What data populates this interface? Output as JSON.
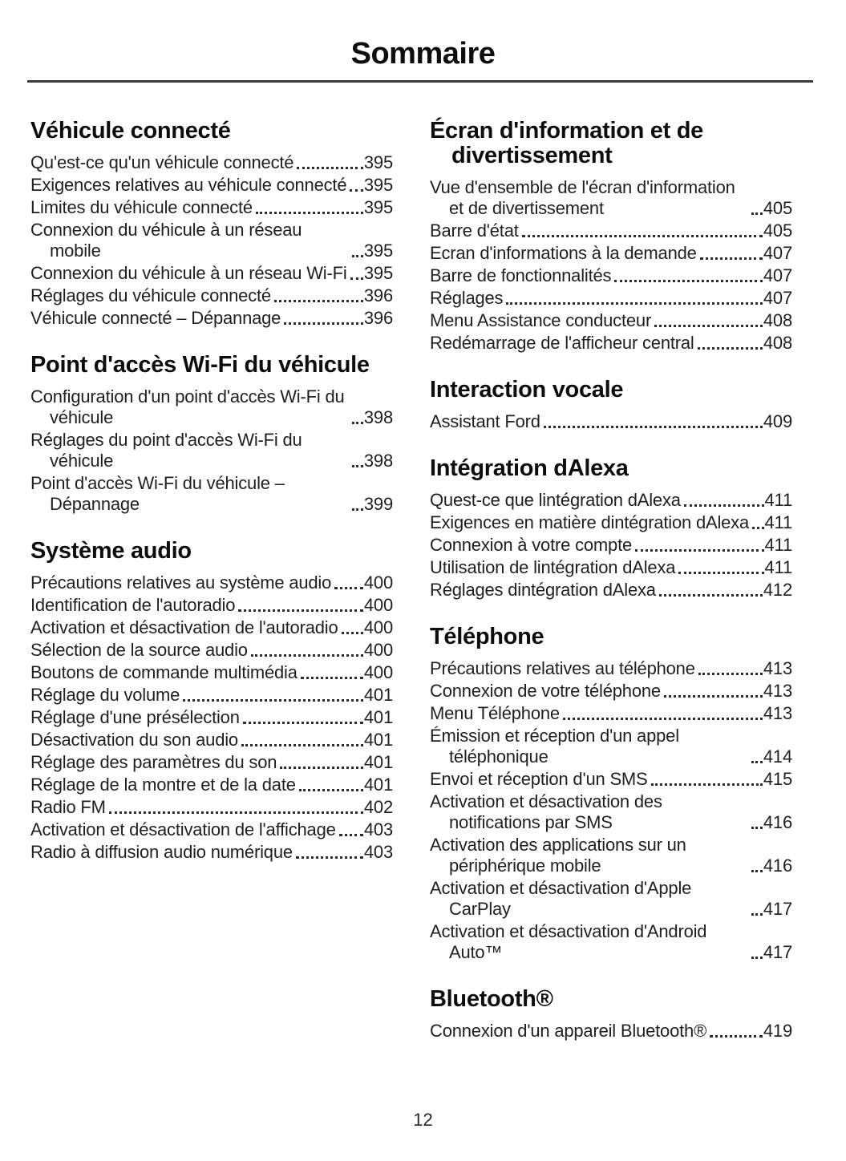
{
  "colors": {
    "background": "#ffffff",
    "text": "#1f1f1f",
    "heading": "#0d0d0d",
    "rule": "#3d3d3d"
  },
  "header": {
    "title": "Sommaire"
  },
  "footer": {
    "page_number": "12"
  },
  "columns": [
    {
      "sections": [
        {
          "heading": "Véhicule connecté",
          "entries": [
            {
              "label": "Qu'est-ce qu'un véhicule connecté",
              "page": "395"
            },
            {
              "label": "Exigences relatives au véhicule connecté",
              "page": "395"
            },
            {
              "label": "Limites du véhicule connecté",
              "page": "395"
            },
            {
              "label": "Connexion du véhicule à un réseau mobile",
              "page": "395"
            },
            {
              "label": "Connexion du véhicule à un réseau Wi-Fi",
              "page": "395"
            },
            {
              "label": "Réglages du véhicule connecté",
              "page": "396"
            },
            {
              "label": "Véhicule connecté – Dépannage",
              "page": "396"
            }
          ]
        },
        {
          "heading": "Point d'accès Wi-Fi du véhicule",
          "entries": [
            {
              "label": "Configuration d'un point d'accès Wi-Fi du véhicule",
              "page": "398"
            },
            {
              "label": "Réglages du point d'accès Wi-Fi du véhicule",
              "page": "398"
            },
            {
              "label": "Point d'accès Wi-Fi du véhicule – Dépannage",
              "page": "399"
            }
          ]
        },
        {
          "heading": "Système audio",
          "entries": [
            {
              "label": "Précautions relatives au système audio",
              "page": "400"
            },
            {
              "label": "Identification de l'autoradio",
              "page": "400"
            },
            {
              "label": "Activation et désactivation de l'autoradio",
              "page": "400"
            },
            {
              "label": "Sélection de la source audio",
              "page": "400"
            },
            {
              "label": "Boutons de commande multimédia",
              "page": "400"
            },
            {
              "label": "Réglage du volume",
              "page": "401"
            },
            {
              "label": "Réglage d'une présélection",
              "page": "401"
            },
            {
              "label": "Désactivation du son audio",
              "page": "401"
            },
            {
              "label": "Réglage des paramètres du son",
              "page": "401"
            },
            {
              "label": "Réglage de la montre et de la date",
              "page": "401"
            },
            {
              "label": "Radio FM",
              "page": "402"
            },
            {
              "label": "Activation et désactivation de l'affichage",
              "page": "403"
            },
            {
              "label": "Radio à diffusion audio numérique",
              "page": "403"
            }
          ]
        }
      ]
    },
    {
      "sections": [
        {
          "heading": "Écran d'information et de divertissement",
          "entries": [
            {
              "label": "Vue d'ensemble de l'écran d'information et de divertissement",
              "page": "405"
            },
            {
              "label": "Barre d'état",
              "page": "405"
            },
            {
              "label": "Ecran d'informations à la demande",
              "page": "407"
            },
            {
              "label": "Barre de fonctionnalités",
              "page": "407"
            },
            {
              "label": "Réglages",
              "page": "407"
            },
            {
              "label": "Menu Assistance conducteur",
              "page": "408"
            },
            {
              "label": "Redémarrage de l'afficheur central",
              "page": "408"
            }
          ]
        },
        {
          "heading": "Interaction vocale",
          "entries": [
            {
              "label": "Assistant Ford",
              "page": "409"
            }
          ]
        },
        {
          "heading": "Intégration dAlexa",
          "entries": [
            {
              "label": "Quest-ce que lintégration dAlexa",
              "page": "411"
            },
            {
              "label": "Exigences en matière dintégration dAlexa",
              "page": "411"
            },
            {
              "label": "Connexion à votre compte",
              "page": "411"
            },
            {
              "label": "Utilisation de lintégration dAlexa",
              "page": "411"
            },
            {
              "label": "Réglages dintégration dAlexa",
              "page": "412"
            }
          ]
        },
        {
          "heading": "Téléphone",
          "entries": [
            {
              "label": "Précautions relatives au téléphone",
              "page": "413"
            },
            {
              "label": "Connexion de votre téléphone",
              "page": "413"
            },
            {
              "label": "Menu Téléphone",
              "page": "413"
            },
            {
              "label": "Émission et réception d'un appel téléphonique",
              "page": "414"
            },
            {
              "label": "Envoi et réception d'un SMS",
              "page": "415"
            },
            {
              "label": "Activation et désactivation des notifications par SMS",
              "page": "416"
            },
            {
              "label": "Activation des applications sur un périphérique mobile",
              "page": "416"
            },
            {
              "label": "Activation et désactivation d'Apple CarPlay",
              "page": "417"
            },
            {
              "label": "Activation et désactivation d'Android Auto™",
              "page": "417"
            }
          ]
        },
        {
          "heading": "Bluetooth®",
          "entries": [
            {
              "label": "Connexion d'un appareil Bluetooth®",
              "page": "419"
            }
          ]
        }
      ]
    }
  ]
}
